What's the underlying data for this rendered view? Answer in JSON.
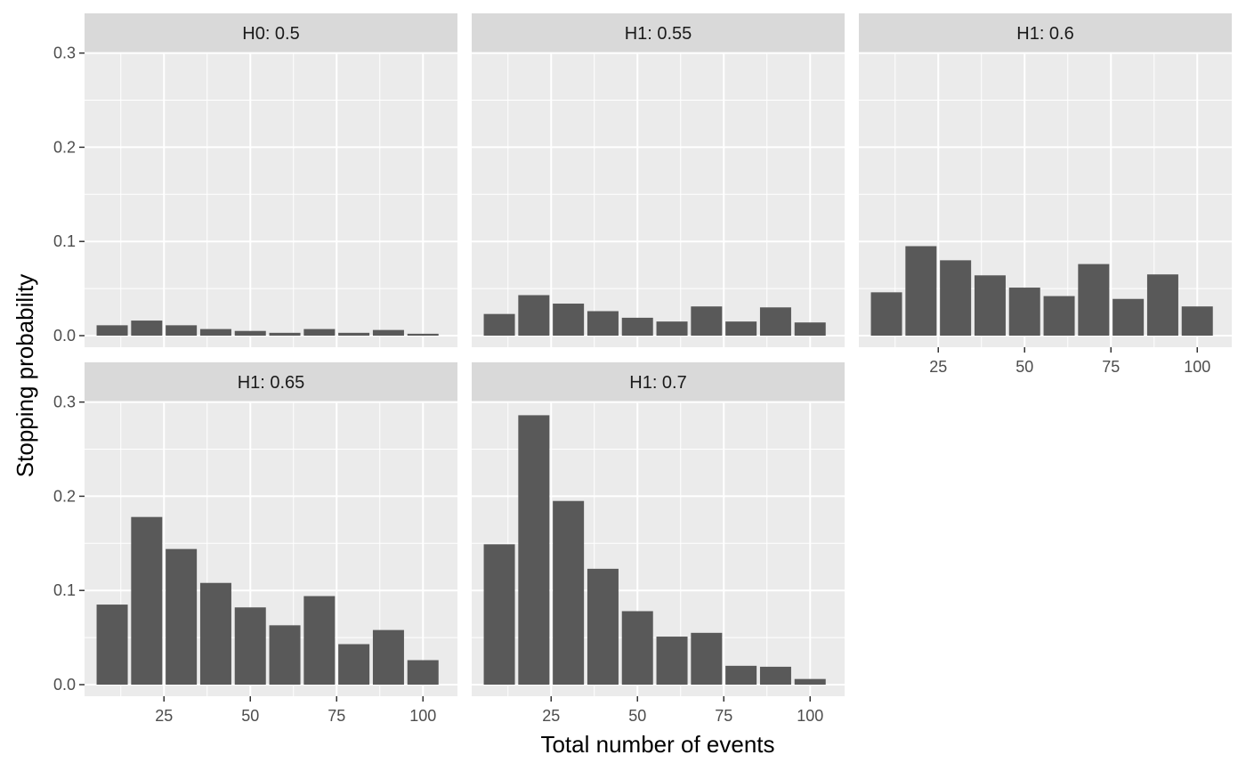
{
  "chart_data": {
    "type": "bar",
    "layout": "facet_wrap",
    "xlabel": "Total number of events",
    "ylabel": "Stopping probability",
    "ylim": [
      0,
      0.3
    ],
    "xlim": [
      2,
      106
    ],
    "y_ticks": [
      0.0,
      0.1,
      0.2,
      0.3
    ],
    "y_tick_labels": [
      "0.0",
      "0.1",
      "0.2",
      "0.3"
    ],
    "x_ticks": [
      25,
      50,
      75,
      100
    ],
    "x_tick_labels": [
      "25",
      "50",
      "75",
      "100"
    ],
    "x": [
      10,
      20,
      30,
      40,
      50,
      60,
      70,
      80,
      90,
      100
    ],
    "bar_color": "#595959",
    "panel_bg": "#ebebeb",
    "strip_bg": "#d9d9d9",
    "facets": [
      {
        "label": "H0: 0.5",
        "values": [
          0.011,
          0.016,
          0.011,
          0.007,
          0.005,
          0.003,
          0.007,
          0.003,
          0.006,
          0.002
        ]
      },
      {
        "label": "H1: 0.55",
        "values": [
          0.023,
          0.043,
          0.034,
          0.026,
          0.019,
          0.015,
          0.031,
          0.015,
          0.03,
          0.014
        ]
      },
      {
        "label": "H1: 0.6",
        "values": [
          0.046,
          0.095,
          0.08,
          0.064,
          0.051,
          0.042,
          0.076,
          0.039,
          0.065,
          0.031
        ]
      },
      {
        "label": "H1: 0.65",
        "values": [
          0.085,
          0.178,
          0.144,
          0.108,
          0.082,
          0.063,
          0.094,
          0.043,
          0.058,
          0.026
        ]
      },
      {
        "label": "H1: 0.7",
        "values": [
          0.149,
          0.286,
          0.195,
          0.123,
          0.078,
          0.051,
          0.055,
          0.02,
          0.019,
          0.006
        ]
      }
    ]
  }
}
